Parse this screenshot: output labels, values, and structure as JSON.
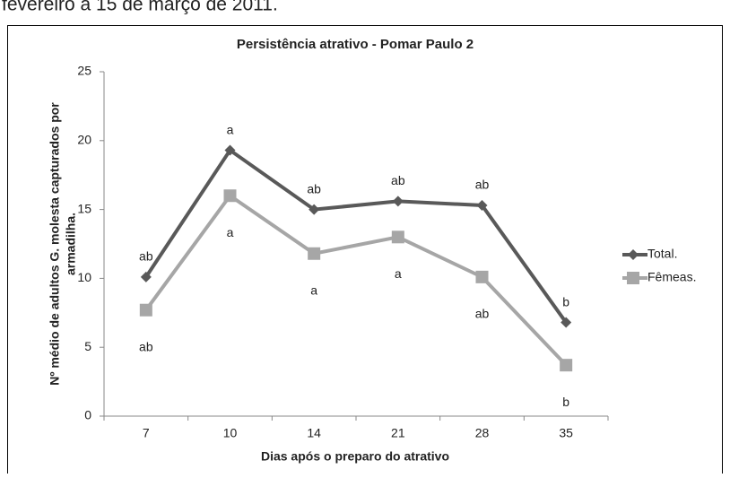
{
  "header_text": "fevereiro a 15 de março de 2011.",
  "chart_data": {
    "type": "line",
    "title": "Persistência atrativo - Pomar Paulo 2",
    "xlabel": "Dias após o preparo do atrativo",
    "ylabel": [
      "Nº médio de adultos G. molesta capturados por",
      "armadilha."
    ],
    "categories": [
      "7",
      "10",
      "14",
      "21",
      "28",
      "35"
    ],
    "series": [
      {
        "name": "Total.",
        "color": "#595959",
        "marker": "diamond",
        "values": [
          10.1,
          19.3,
          15.0,
          15.6,
          15.3,
          6.8
        ],
        "letters": [
          "ab",
          "a",
          "ab",
          "ab",
          "ab",
          "b"
        ],
        "letters_position": "above"
      },
      {
        "name": "Fêmeas.",
        "color": "#a6a6a6",
        "marker": "square",
        "values": [
          7.7,
          16.0,
          11.8,
          13.0,
          10.1,
          3.7
        ],
        "letters": [
          "ab",
          "a",
          "a",
          "a",
          "ab",
          "b"
        ],
        "letters_position": "below"
      }
    ],
    "ylim": [
      0,
      25
    ],
    "yticks": [
      0,
      5,
      10,
      15,
      20,
      25
    ],
    "grid": false,
    "legend": "right"
  }
}
